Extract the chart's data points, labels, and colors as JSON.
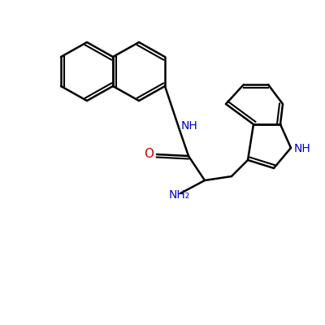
{
  "background_color": "#ffffff",
  "bond_color": "#000000",
  "nitrogen_color": "#0000cc",
  "oxygen_color": "#cc0000",
  "label_NH": "NH",
  "label_NH2": "NH₂",
  "label_O": "O",
  "figsize": [
    4.0,
    4.0
  ],
  "dpi": 100
}
